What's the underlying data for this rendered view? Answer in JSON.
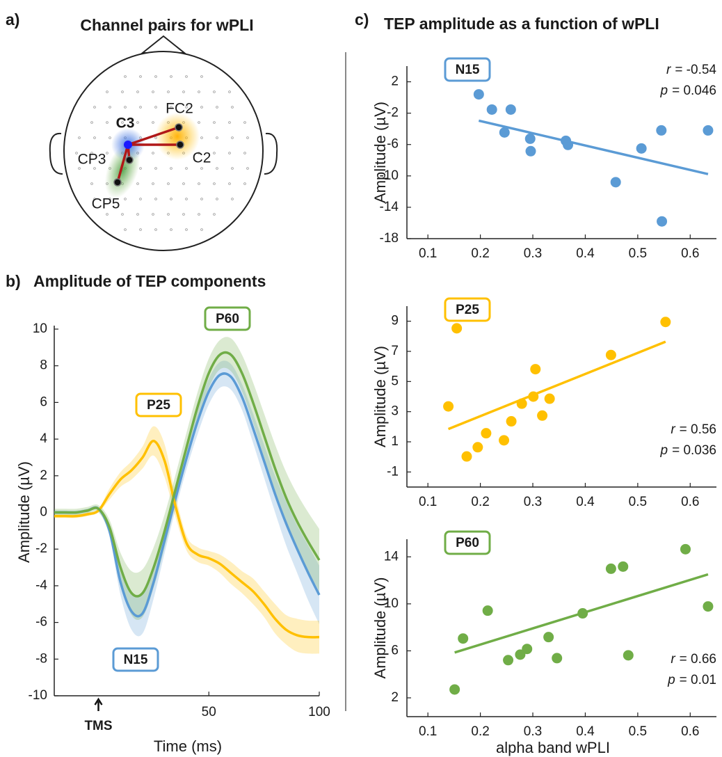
{
  "head_map": {
    "panel_label": "a)",
    "title": "Channel pairs for wPLI",
    "channels": [
      "C3",
      "FC2",
      "C2",
      "CP3",
      "CP5"
    ]
  },
  "chart_data": [
    {
      "type": "line",
      "panel_label": "b)",
      "title": "Amplitude of TEP components",
      "x_label": "Time (ms)",
      "y_label": "Amplitude (µV)",
      "annotation": {
        "text": "TMS",
        "x": 0
      },
      "x": [
        -20,
        -15,
        -10,
        -5,
        0,
        5,
        10,
        15,
        20,
        25,
        30,
        35,
        40,
        45,
        50,
        55,
        60,
        65,
        70,
        75,
        80,
        85,
        90,
        95,
        100
      ],
      "xlim": [
        -20,
        100
      ],
      "xticks": [
        50,
        100
      ],
      "ylim": [
        -10,
        10
      ],
      "yticks": [
        -10,
        -8,
        -6,
        -4,
        -2,
        0,
        2,
        4,
        6,
        8,
        10
      ],
      "series": [
        {
          "name": "N15",
          "color": "#5b9bd5",
          "values": [
            0,
            0,
            0,
            0.1,
            0.2,
            -1.0,
            -3.8,
            -5.4,
            -5.5,
            -3.8,
            -1.5,
            0.8,
            3.0,
            5.0,
            6.6,
            7.5,
            7.4,
            6.3,
            4.6,
            2.8,
            1.0,
            -0.6,
            -2.0,
            -3.3,
            -4.5
          ],
          "error": [
            0.1,
            0.1,
            0.1,
            0.1,
            0.1,
            0.3,
            0.7,
            1.0,
            1.1,
            0.9,
            0.7,
            0.6,
            0.6,
            0.7,
            0.7,
            0.7,
            0.7,
            0.7,
            0.8,
            0.9,
            1.0,
            1.2,
            1.3,
            1.5,
            1.6
          ]
        },
        {
          "name": "P25",
          "color": "#ffc000",
          "values": [
            -0.2,
            -0.2,
            -0.2,
            -0.1,
            0.1,
            1.0,
            1.8,
            2.3,
            3.0,
            3.9,
            2.8,
            0.3,
            -1.7,
            -2.3,
            -2.5,
            -2.8,
            -3.3,
            -3.8,
            -4.3,
            -5.0,
            -5.8,
            -6.4,
            -6.7,
            -6.8,
            -6.8
          ],
          "error": [
            0.1,
            0.1,
            0.1,
            0.1,
            0.1,
            0.3,
            0.4,
            0.5,
            0.6,
            0.8,
            0.9,
            0.6,
            0.4,
            0.4,
            0.4,
            0.5,
            0.6,
            0.6,
            0.7,
            0.7,
            0.8,
            0.8,
            0.9,
            0.9,
            0.9
          ]
        },
        {
          "name": "P60",
          "color": "#70ad47",
          "values": [
            0,
            0,
            0,
            0.1,
            0.2,
            -0.8,
            -3.0,
            -4.4,
            -4.4,
            -3.0,
            -1.0,
            1.3,
            3.6,
            5.8,
            7.6,
            8.6,
            8.6,
            7.6,
            6.0,
            4.2,
            2.4,
            0.8,
            -0.5,
            -1.6,
            -2.6
          ],
          "error": [
            0.2,
            0.2,
            0.2,
            0.2,
            0.2,
            0.4,
            0.8,
            1.2,
            1.3,
            1.1,
            0.9,
            0.8,
            0.8,
            0.8,
            0.8,
            0.8,
            0.9,
            1.0,
            1.1,
            1.2,
            1.3,
            1.4,
            1.5,
            1.6,
            1.7
          ]
        }
      ]
    },
    {
      "type": "scatter",
      "panel_label": "c)",
      "title": "TEP amplitude as a function of wPLI",
      "name": "N15",
      "color": "#5b9bd5",
      "y_label": "Amplitude (µV)",
      "x": [
        0.197,
        0.222,
        0.258,
        0.246,
        0.295,
        0.296,
        0.363,
        0.367,
        0.507,
        0.545,
        0.634,
        0.458,
        0.546
      ],
      "values": [
        0.4,
        -1.54,
        -1.54,
        -4.46,
        -5.26,
        -6.85,
        -5.52,
        -6.05,
        -6.5,
        -4.2,
        -4.2,
        -10.8,
        -15.8
      ],
      "fit_x": [
        0.197,
        0.634
      ],
      "fit_values": [
        -2.96,
        -9.77
      ],
      "stats": [
        {
          "symbol": "r",
          "text": "= -0.54"
        },
        {
          "symbol": "p",
          "text": "= 0.046"
        }
      ],
      "xlim": [
        0.06,
        0.65
      ],
      "xticks": [
        0.1,
        0.2,
        0.3,
        0.4,
        0.5,
        0.6
      ],
      "ylim": [
        -18,
        4
      ],
      "yticks": [
        2,
        -2,
        -6,
        -10,
        -14,
        -18
      ]
    },
    {
      "type": "scatter",
      "name": "P25",
      "color": "#ffc000",
      "y_label": "Amplitude (µV)",
      "x": [
        0.139,
        0.155,
        0.174,
        0.195,
        0.211,
        0.245,
        0.259,
        0.279,
        0.301,
        0.305,
        0.318,
        0.332,
        0.449,
        0.553
      ],
      "values": [
        3.35,
        8.53,
        0.03,
        0.64,
        1.57,
        1.1,
        2.36,
        3.53,
        4.0,
        5.82,
        2.74,
        3.86,
        6.76,
        8.95
      ],
      "fit_x": [
        0.139,
        0.553
      ],
      "fit_values": [
        1.85,
        7.64
      ],
      "stats": [
        {
          "symbol": "r",
          "text": "= 0.56"
        },
        {
          "symbol": "p",
          "text": "= 0.036"
        }
      ],
      "xlim": [
        0.06,
        0.65
      ],
      "xticks": [
        0.1,
        0.2,
        0.3,
        0.4,
        0.5,
        0.6
      ],
      "ylim": [
        -2,
        10
      ],
      "yticks": [
        9,
        7,
        5,
        3,
        1,
        -1
      ]
    },
    {
      "type": "scatter",
      "name": "P60",
      "color": "#70ad47",
      "y_label": "Amplitude (µV)",
      "x_label": "alpha band wPLI",
      "x": [
        0.151,
        0.167,
        0.214,
        0.253,
        0.276,
        0.289,
        0.33,
        0.346,
        0.395,
        0.449,
        0.472,
        0.482,
        0.591,
        0.634
      ],
      "values": [
        2.71,
        7.05,
        9.42,
        5.21,
        5.68,
        6.16,
        7.17,
        5.38,
        9.19,
        12.99,
        13.17,
        5.62,
        14.65,
        9.78
      ],
      "fit_x": [
        0.151,
        0.634
      ],
      "fit_values": [
        5.86,
        12.51
      ],
      "stats": [
        {
          "symbol": "r",
          "text": "= 0.66"
        },
        {
          "symbol": "p",
          "text": "= 0.01"
        }
      ],
      "xlim": [
        0.06,
        0.65
      ],
      "xticks": [
        0.1,
        0.2,
        0.3,
        0.4,
        0.5,
        0.6
      ],
      "ylim": [
        0.4,
        15.5
      ],
      "yticks": [
        14,
        10,
        6,
        2
      ]
    }
  ]
}
